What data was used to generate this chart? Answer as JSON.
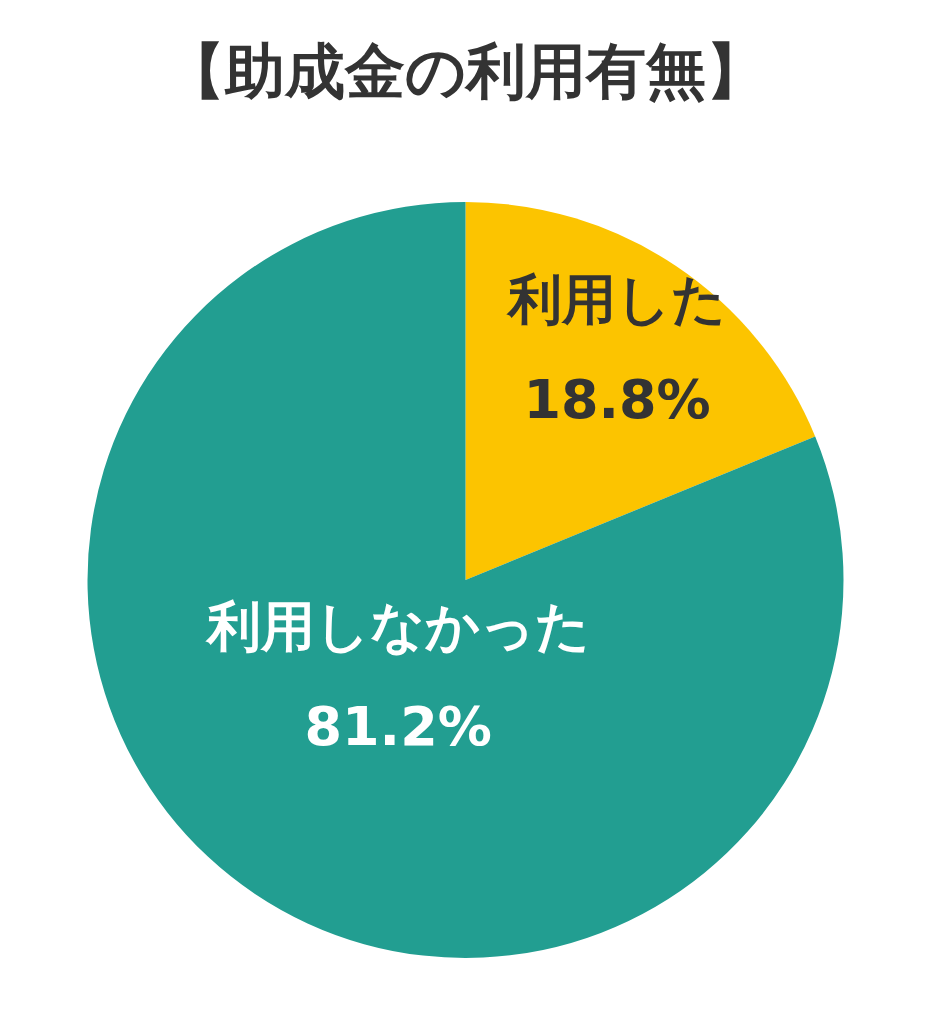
{
  "chart_data": {
    "type": "pie",
    "title": "【助成金の利用有無】",
    "categories": [
      "利用した",
      "利用しなかった"
    ],
    "values": [
      18.8,
      81.2
    ],
    "colors": [
      "#fcc400",
      "#229e91"
    ],
    "value_labels": [
      "18.8%",
      "81.2%"
    ],
    "legend": false
  }
}
